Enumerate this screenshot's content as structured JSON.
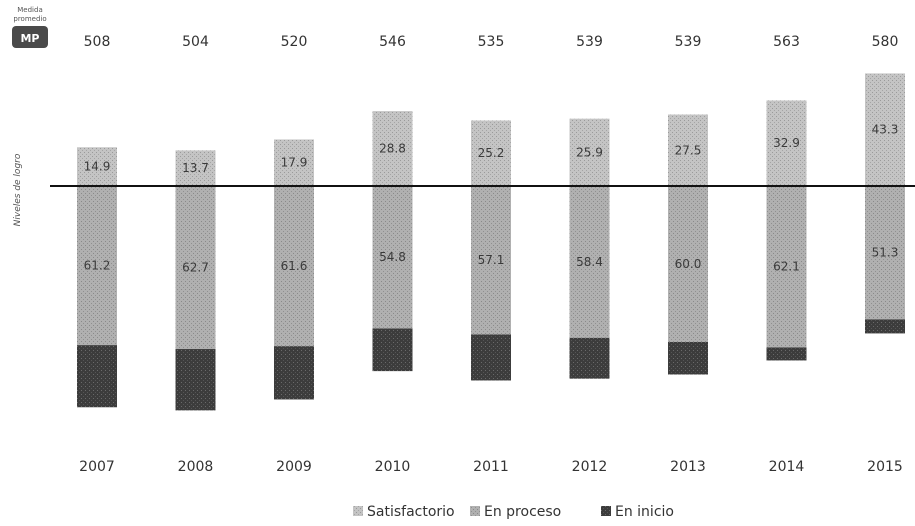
{
  "chart_data": {
    "type": "bar",
    "stacked": "diverging",
    "categories": [
      "2007",
      "2008",
      "2009",
      "2010",
      "2011",
      "2012",
      "2013",
      "2014",
      "2015"
    ],
    "average_scores": [
      508,
      504,
      520,
      546,
      535,
      539,
      539,
      563,
      580
    ],
    "series": [
      {
        "name": "Satisfactorio",
        "values": [
          14.9,
          13.7,
          17.9,
          28.8,
          25.2,
          25.9,
          27.5,
          32.9,
          43.3
        ]
      },
      {
        "name": "En proceso",
        "values": [
          61.2,
          62.7,
          61.6,
          54.8,
          57.1,
          58.4,
          60.0,
          62.1,
          51.3
        ]
      },
      {
        "name": "En inicio",
        "values": [
          23.9,
          23.6,
          20.5,
          16.4,
          17.7,
          15.7,
          12.5,
          5.0,
          5.4
        ]
      }
    ],
    "baseline": "Satisfactorio above, En proceso and En inicio below",
    "ylabel": "Niveles de logro",
    "legend_position": "bottom",
    "colors": {
      "Satisfactorio": "#b9b9b9",
      "En proceso": "#a9a9a9",
      "En inicio": "#3a3a3a",
      "baseline": "#111111"
    }
  },
  "header": {
    "caption_line1": "Medida",
    "caption_line2": "promedio",
    "badge": "MP"
  },
  "legend": {
    "items": [
      "Satisfactorio",
      "En proceso",
      "En inicio"
    ]
  }
}
